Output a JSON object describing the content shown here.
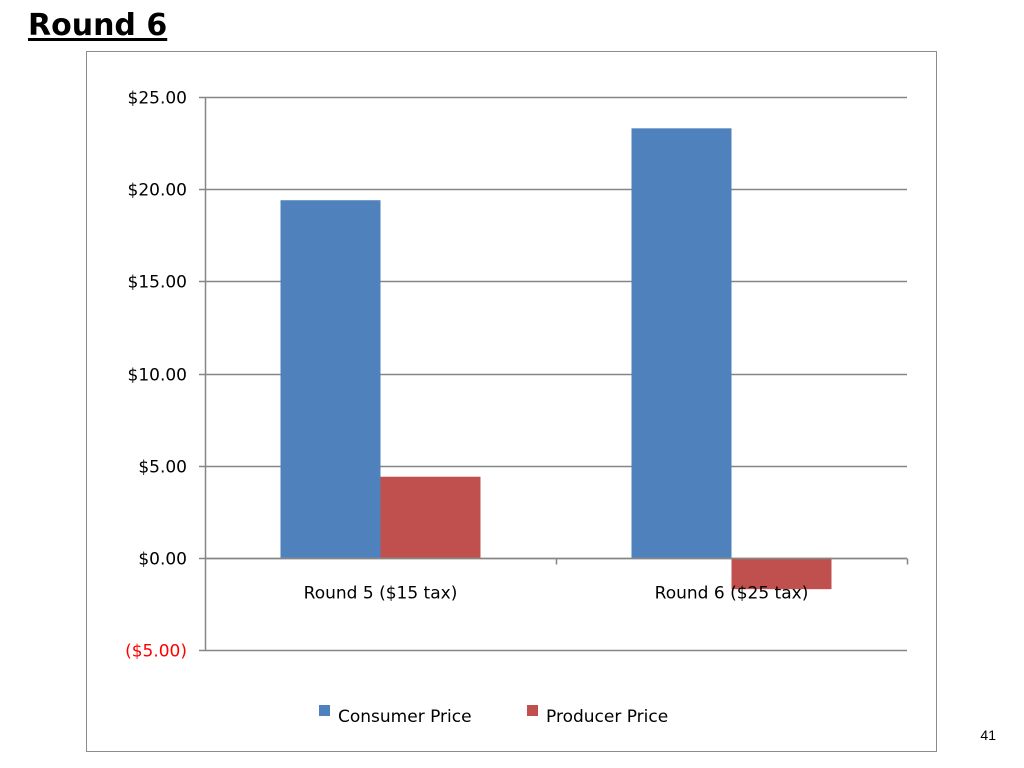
{
  "slide": {
    "title": "Round 6",
    "page_number": "41"
  },
  "colors": {
    "consumer": "#4f81bd",
    "producer": "#c0504d",
    "negative_tick": "#ff0000",
    "grid": "#868686"
  },
  "chart_data": {
    "type": "bar",
    "categories": [
      "Round 5 ($15 tax)",
      "Round 6 ($25 tax)"
    ],
    "series": [
      {
        "name": "Consumer Price",
        "values": [
          19.4,
          23.3
        ]
      },
      {
        "name": "Producer Price",
        "values": [
          4.4,
          -1.7
        ]
      }
    ],
    "ylim": [
      -5,
      25
    ],
    "yticks": [
      {
        "value": 25,
        "label": "$25.00"
      },
      {
        "value": 20,
        "label": "$20.00"
      },
      {
        "value": 15,
        "label": "$15.00"
      },
      {
        "value": 10,
        "label": "$10.00"
      },
      {
        "value": 5,
        "label": "$5.00"
      },
      {
        "value": 0,
        "label": "$0.00"
      },
      {
        "value": -5,
        "label": "($5.00)"
      }
    ],
    "grid": true,
    "legend_position": "bottom"
  }
}
